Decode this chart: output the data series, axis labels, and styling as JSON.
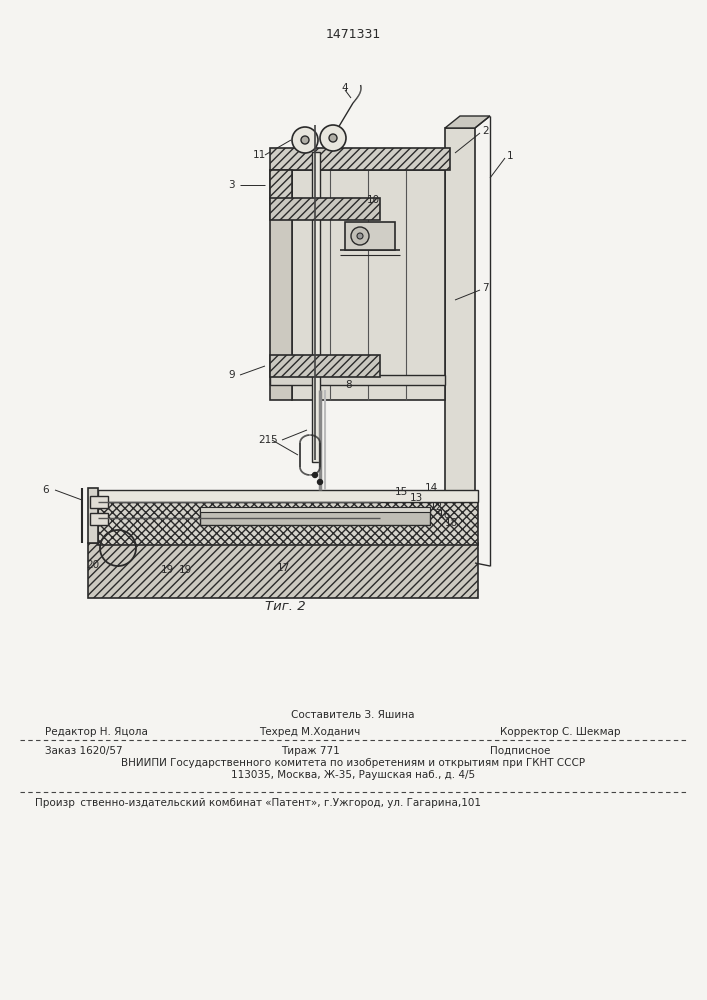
{
  "patent_number": "1471331",
  "fig_label": "Τиг. 2",
  "bg_color": "#f5f4f1",
  "line_color": "#2a2a2a",
  "footer": {
    "sestavitel": "Составитель З. Яшина",
    "redaktor": "Редактор Н. Яцола",
    "tehred": "Техред М.Ходанич",
    "korrektor": "Корректор С. Шекмар",
    "zakaz": "Заказ 1620/57",
    "tirazh": "Тираж 771",
    "podpisnoe": "Подписное",
    "vniip_line1": "ВНИИПИ Государственного комитета по изобретениям и открытиям при ГКНТ СССР",
    "vniip_line2": "113035, Москва, Ж-35, Раушская наб., д. 4/5",
    "proizv": "Произр  ственно-издательский комбинат «Патент», г.Ужгород, ул. Гагарина,101"
  }
}
